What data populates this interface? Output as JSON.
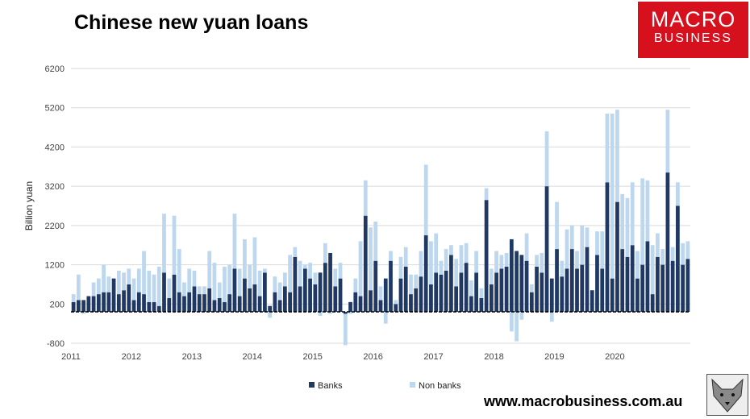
{
  "header": {
    "title": "Chinese new yuan loans",
    "logo_top": "MACRO",
    "logo_bottom": "BUSINESS",
    "website": "www.macrobusiness.com.au"
  },
  "colors": {
    "banks": "#1f3864",
    "non_banks": "#bdd7ee",
    "grid": "#d9d9d9"
  },
  "chart_data": {
    "type": "bar",
    "stacked": true,
    "title": "",
    "xlabel": "",
    "ylabel": "Billion yuan",
    "ylim": [
      -800,
      6200
    ],
    "yticks": [
      -800,
      200,
      1200,
      2200,
      3200,
      4200,
      5200,
      6200
    ],
    "grid": true,
    "legend_position": "bottom",
    "start": "2011-01",
    "x_tick_labels": [
      "2011",
      "2012",
      "2013",
      "2014",
      "2015",
      "2016",
      "2017",
      "2018",
      "2019",
      "2020"
    ],
    "series": [
      {
        "name": "Banks",
        "values": [
          250,
          300,
          300,
          400,
          400,
          450,
          500,
          500,
          850,
          450,
          550,
          700,
          300,
          500,
          450,
          250,
          250,
          150,
          1000,
          350,
          950,
          500,
          400,
          500,
          650,
          450,
          450,
          600,
          300,
          350,
          250,
          450,
          1100,
          400,
          850,
          600,
          700,
          400,
          1000,
          150,
          500,
          300,
          650,
          500,
          1400,
          650,
          1100,
          850,
          700,
          1000,
          1250,
          1500,
          650,
          850,
          -50,
          250,
          500,
          400,
          2450,
          550,
          1300,
          300,
          850,
          1300,
          200,
          850,
          1150,
          450,
          600,
          900,
          1950,
          700,
          1000,
          950,
          1050,
          1450,
          650,
          1000,
          1250,
          400,
          1000,
          350,
          2850,
          700,
          1000,
          1100,
          1150,
          1850,
          1550,
          1450,
          1300,
          500,
          1150,
          1000,
          3200,
          850,
          1600,
          900,
          1100,
          1600,
          1100,
          1200,
          1650,
          550,
          1450,
          1100,
          3300,
          850,
          2800,
          1600,
          1400,
          1700,
          850,
          1200,
          1800,
          450,
          1400,
          1200,
          3550,
          1300,
          2700,
          1200,
          1350
        ]
      },
      {
        "name": "Non banks",
        "values": [
          200,
          650,
          -50,
          0,
          350,
          400,
          700,
          400,
          0,
          600,
          450,
          400,
          550,
          600,
          1100,
          800,
          700,
          1000,
          1500,
          500,
          1500,
          1100,
          350,
          600,
          400,
          200,
          200,
          950,
          950,
          400,
          900,
          750,
          1400,
          700,
          1000,
          600,
          1200,
          650,
          100,
          -150,
          400,
          450,
          350,
          950,
          250,
          650,
          100,
          400,
          300,
          -100,
          500,
          -50,
          450,
          400,
          -800,
          -50,
          350,
          1400,
          900,
          1600,
          1000,
          350,
          -300,
          250,
          100,
          550,
          500,
          500,
          350,
          650,
          1800,
          1100,
          1000,
          350,
          550,
          250,
          700,
          700,
          500,
          400,
          550,
          250,
          300,
          400,
          550,
          350,
          350,
          -500,
          -750,
          -200,
          700,
          200,
          300,
          500,
          1400,
          -250,
          1200,
          400,
          1000,
          600,
          450,
          1000,
          500,
          0,
          600,
          950,
          1750,
          4200,
          2350,
          1400,
          1500,
          1600,
          700,
          2200,
          1550,
          1250,
          600,
          400,
          1600,
          350,
          600,
          550,
          450
        ]
      }
    ]
  }
}
